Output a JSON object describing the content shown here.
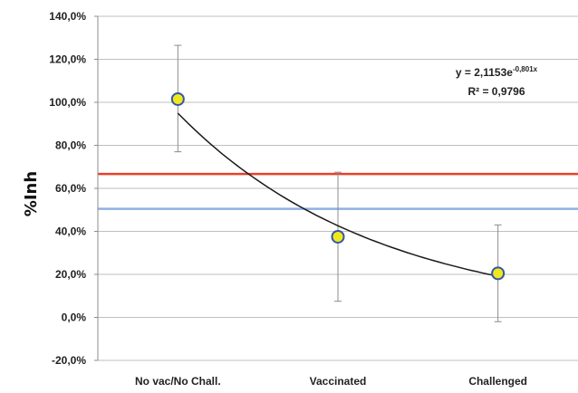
{
  "chart_data": {
    "type": "scatter",
    "title": "",
    "xlabel": "",
    "ylabel": "%Inh",
    "categories": [
      "No vac/No Chall.",
      "Vaccinated",
      "Challenged"
    ],
    "values": [
      101.5,
      37.5,
      20.5
    ],
    "error_upper": [
      126.5,
      67.5,
      43.0
    ],
    "error_lower": [
      77.0,
      7.5,
      -2.0
    ],
    "ylim": [
      -20,
      140
    ],
    "yticks": [
      -20,
      0,
      20,
      40,
      60,
      80,
      100,
      120,
      140
    ],
    "ytick_labels": [
      "-20,0%",
      "0,0%",
      "20,0%",
      "40,0%",
      "60,0%",
      "80,0%",
      "100,0%",
      "120,0%",
      "140,0%"
    ],
    "reference_lines": [
      {
        "y": 66.7,
        "color": "#e8402a"
      },
      {
        "y": 50.5,
        "color": "#8fb0e0"
      }
    ],
    "trendline": {
      "type": "exponential",
      "a": 2.1153,
      "b": -0.801,
      "equation_main": "y = 2,1153e",
      "equation_exp": "-0,801x",
      "r2_label": "R² = 0,9796"
    },
    "marker_color": "#f0e81e",
    "marker_edge": "#3355aa",
    "grid": true,
    "gridline_color": "#bfbfbf"
  }
}
